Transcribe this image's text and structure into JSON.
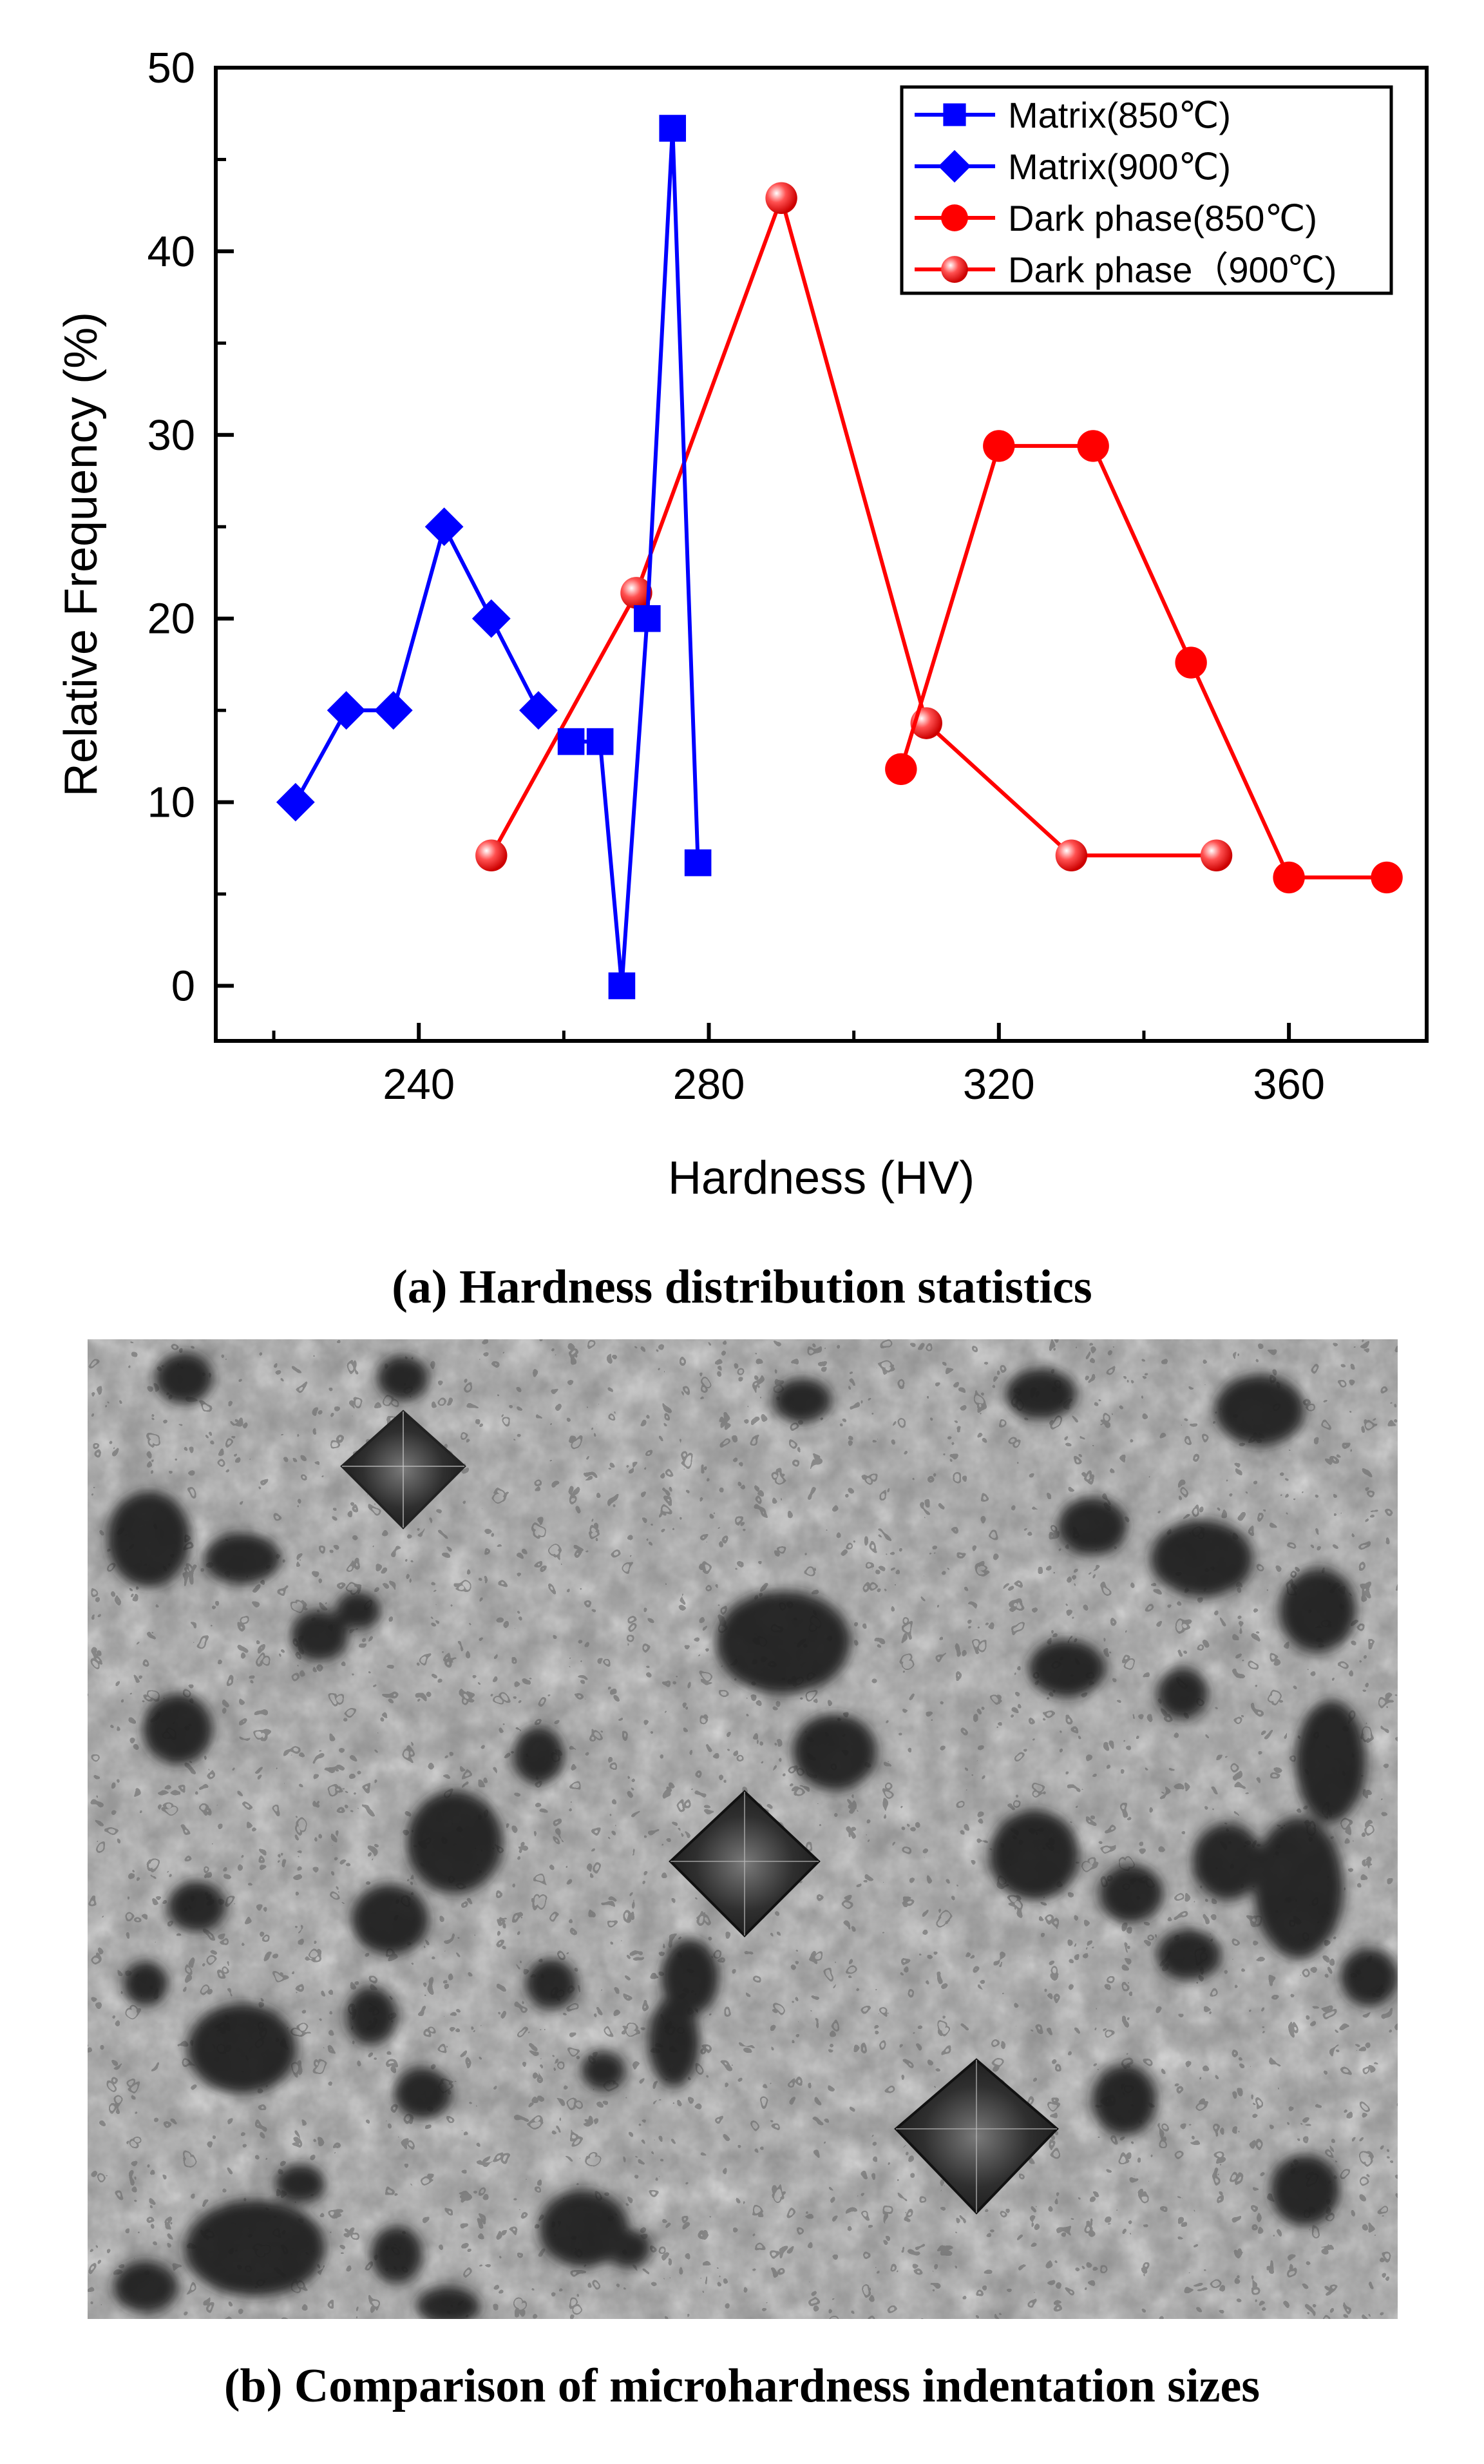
{
  "chart_data": {
    "type": "line",
    "xlabel": "Hardness (HV)",
    "ylabel": "Relative Frequency (%)",
    "xlim": [
      212,
      379
    ],
    "ylim": [
      -3,
      50
    ],
    "xticks": [
      240,
      280,
      320,
      360
    ],
    "yticks": [
      0,
      10,
      20,
      30,
      40,
      50
    ],
    "legend_position": "top-right",
    "grid": false,
    "series": [
      {
        "name": "Matrix(850℃)",
        "color": "#0000ff",
        "marker": "square",
        "x": [
          261,
          265,
          268,
          271.5,
          275,
          278.5
        ],
        "y": [
          13.3,
          13.3,
          0,
          20,
          46.7,
          6.7
        ]
      },
      {
        "name": "Matrix(900℃)",
        "color": "#0000ff",
        "marker": "diamond",
        "x": [
          223,
          230,
          236.5,
          243.5,
          250,
          256.5
        ],
        "y": [
          10,
          15,
          15,
          25,
          20,
          15
        ]
      },
      {
        "name": "Dark phase(850℃)",
        "color": "#ff0000",
        "marker": "circle",
        "x": [
          306.5,
          320,
          333,
          346.5,
          360,
          373.5
        ],
        "y": [
          11.8,
          29.4,
          29.4,
          17.6,
          5.9,
          5.9
        ]
      },
      {
        "name": "Dark phase（900℃)",
        "color": "#ff0000",
        "marker": "sphere",
        "x": [
          250,
          270,
          290,
          310,
          330,
          350
        ],
        "y": [
          7.1,
          21.4,
          42.9,
          14.3,
          7.1,
          7.1
        ]
      }
    ]
  },
  "captions": {
    "a": "(a) Hardness distribution statistics",
    "b": "(b) Comparison of microhardness indentation sizes"
  }
}
